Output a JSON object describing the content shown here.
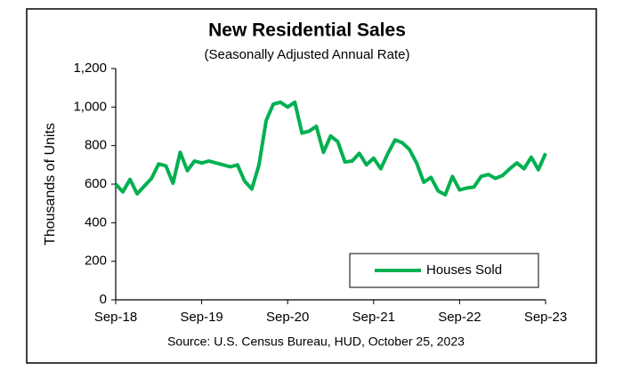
{
  "chart_data": {
    "type": "line",
    "title": "New Residential Sales",
    "subtitle": "(Seasonally Adjusted Annual Rate)",
    "y_label": "Thousands of Units",
    "source": "Source:  U.S. Census Bureau, HUD, October 25, 2023",
    "categories": [
      "Sep-18",
      null,
      null,
      null,
      null,
      null,
      null,
      null,
      null,
      null,
      null,
      null,
      "Sep-19",
      null,
      null,
      null,
      null,
      null,
      null,
      null,
      null,
      null,
      null,
      null,
      "Sep-20",
      null,
      null,
      null,
      null,
      null,
      null,
      null,
      null,
      null,
      null,
      null,
      "Sep-21",
      null,
      null,
      null,
      null,
      null,
      null,
      null,
      null,
      null,
      null,
      null,
      "Sep-22",
      null,
      null,
      null,
      null,
      null,
      null,
      null,
      null,
      null,
      null,
      null,
      "Sep-23"
    ],
    "series": [
      {
        "name": "Houses Sold",
        "color": "#00b050",
        "values": [
          600,
          560,
          625,
          550,
          590,
          630,
          705,
          695,
          605,
          765,
          670,
          720,
          710,
          720,
          710,
          700,
          690,
          700,
          615,
          575,
          700,
          930,
          1015,
          1025,
          1000,
          1025,
          865,
          875,
          900,
          765,
          850,
          820,
          715,
          720,
          760,
          700,
          735,
          680,
          760,
          830,
          815,
          780,
          710,
          610,
          635,
          565,
          545,
          640,
          570,
          580,
          585,
          640,
          650,
          630,
          645,
          680,
          710,
          680,
          740,
          675,
          760
        ]
      }
    ],
    "ylim": [
      0,
      1200
    ],
    "yticks": [
      0,
      200,
      400,
      600,
      800,
      {
        "value": 1000,
        "label": "1,000"
      },
      {
        "value": 1200,
        "label": "1,200"
      }
    ],
    "grid": false,
    "legend": "lower right"
  }
}
